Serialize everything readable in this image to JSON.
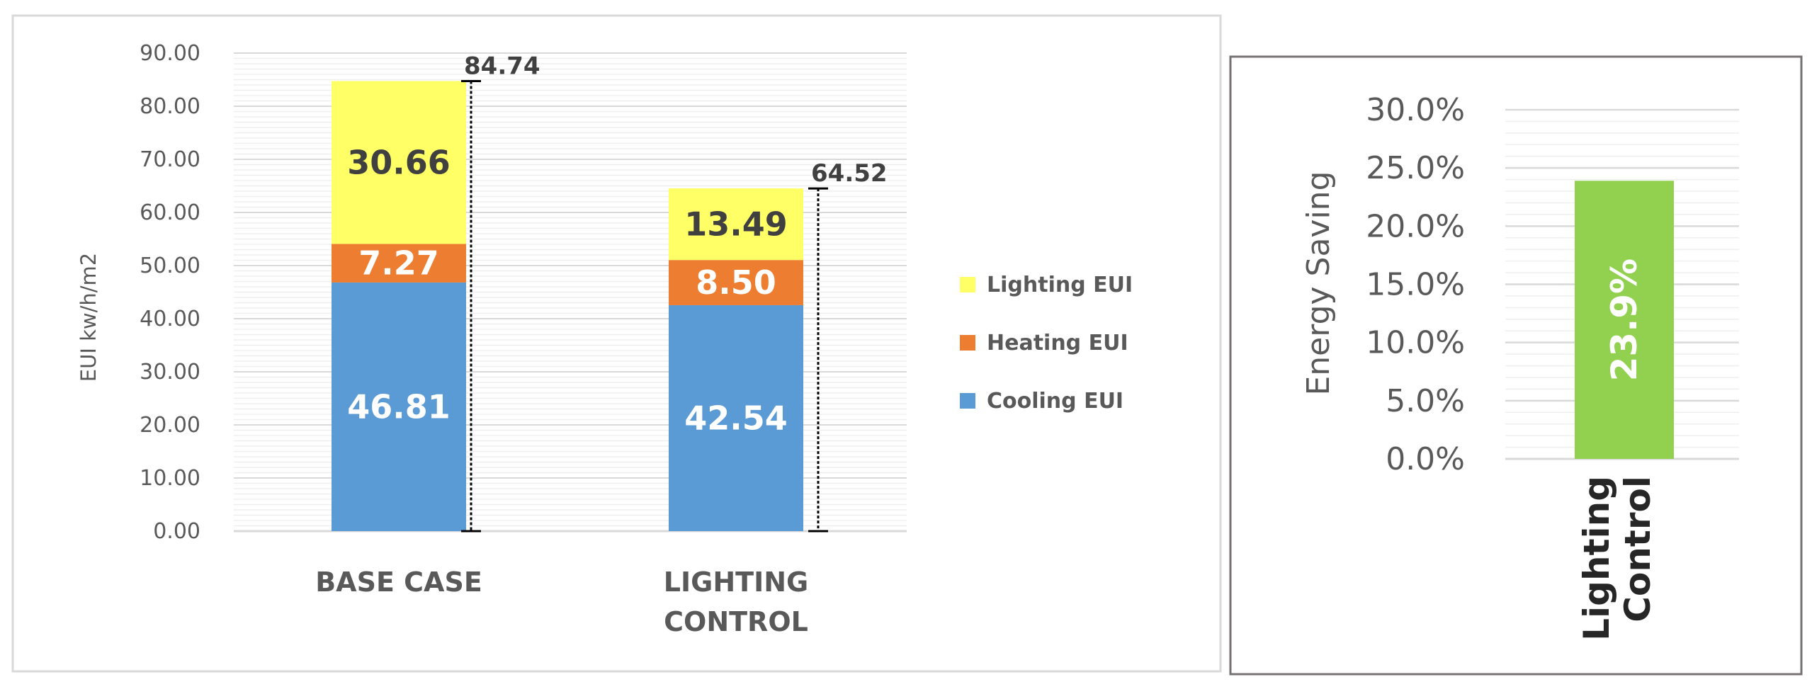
{
  "chart_data": [
    {
      "type": "bar",
      "stacked": true,
      "ylabel": "EUI kw/h/m2",
      "ylim": [
        0,
        90
      ],
      "ytick_labels": [
        "0.00",
        "10.00",
        "20.00",
        "30.00",
        "40.00",
        "50.00",
        "60.00",
        "70.00",
        "80.00",
        "90.00"
      ],
      "ytick_values": [
        0,
        10,
        20,
        30,
        40,
        50,
        60,
        70,
        80,
        90
      ],
      "categories": [
        {
          "lines": [
            "BASE CASE"
          ]
        },
        {
          "lines": [
            "LIGHTING",
            "CONTROL"
          ]
        }
      ],
      "series": [
        {
          "name": "Cooling EUI",
          "color": "#5b9bd5",
          "values": [
            46.81,
            42.54
          ],
          "labels": [
            "46.81",
            "42.54"
          ],
          "label_color": "#ffffff"
        },
        {
          "name": "Heating EUI",
          "color": "#ed7d31",
          "values": [
            7.27,
            8.5
          ],
          "labels": [
            "7.27",
            "8.50"
          ],
          "label_color": "#ffffff"
        },
        {
          "name": "Lighting EUI",
          "color": "#ffff66",
          "values": [
            30.66,
            13.49
          ],
          "labels": [
            "30.66",
            "13.49"
          ],
          "label_color": "#404040"
        }
      ],
      "totals": [
        84.74,
        64.52
      ],
      "total_labels": [
        "84.74",
        "64.52"
      ],
      "legend_order": [
        "Lighting EUI",
        "Heating EUI",
        "Cooling EUI"
      ],
      "legend_position": "right",
      "grid": true
    },
    {
      "type": "bar",
      "ylabel": "Energy Saving",
      "ylim": [
        0,
        30
      ],
      "ytick_labels": [
        "0.0%",
        "5.0%",
        "10.0%",
        "15.0%",
        "20.0%",
        "25.0%",
        "30.0%"
      ],
      "ytick_values": [
        0,
        5,
        10,
        15,
        20,
        25,
        30
      ],
      "categories": [
        {
          "lines": [
            "Lighting",
            "Control"
          ]
        }
      ],
      "values": [
        23.9
      ],
      "value_labels": [
        "23.9%"
      ],
      "color": "#92d050",
      "grid": true
    }
  ]
}
